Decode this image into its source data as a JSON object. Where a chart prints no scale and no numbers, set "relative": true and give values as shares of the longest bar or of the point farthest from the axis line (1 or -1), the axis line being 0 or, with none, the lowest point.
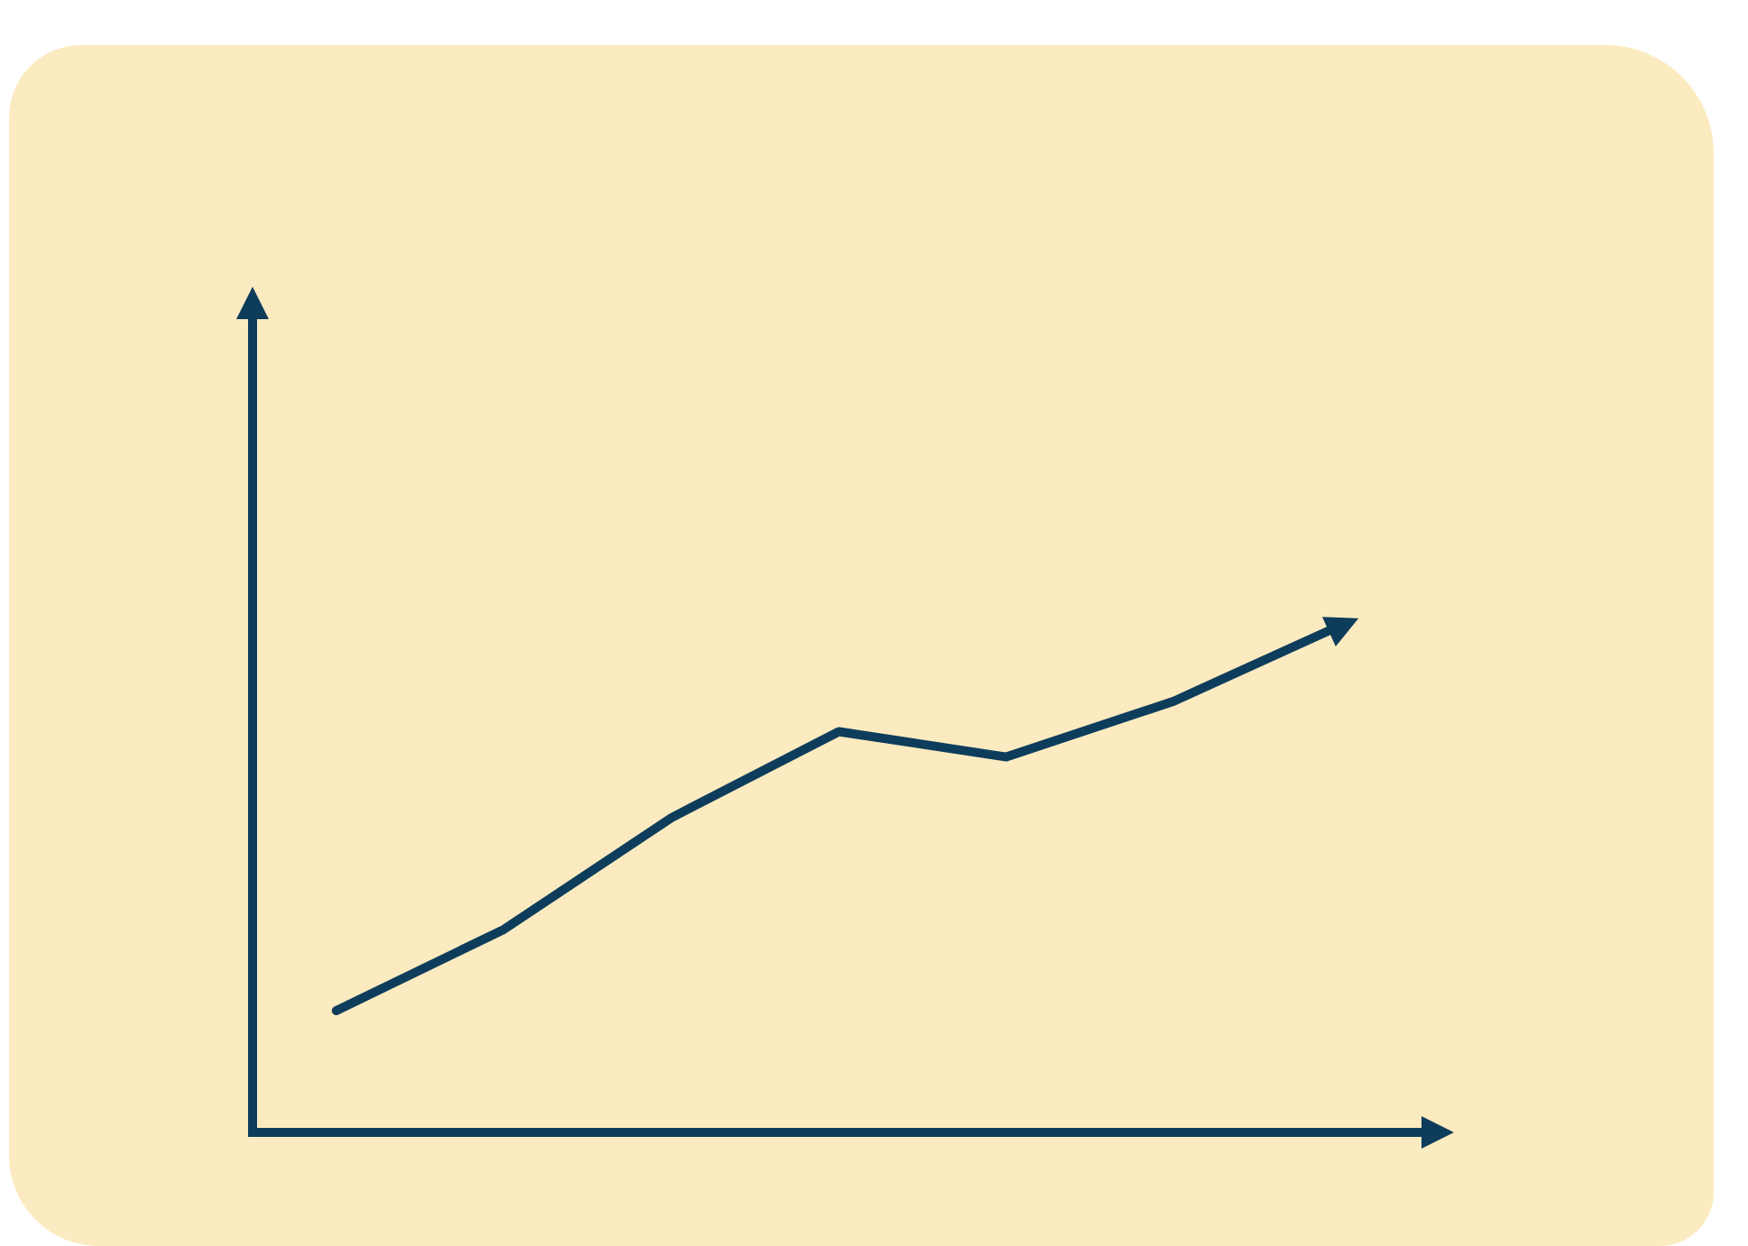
{
  "chart_data": {
    "type": "line",
    "relative": true,
    "categories": [
      null,
      null,
      null,
      null,
      null,
      null,
      null
    ],
    "series": [
      {
        "color": "#0e3d5c",
        "values": [
          0.24,
          0.4,
          0.62,
          0.79,
          0.74,
          0.85,
          1
        ]
      }
    ],
    "tick_labels": false,
    "grid": false,
    "legend": false,
    "marker": "none",
    "line_style": "solid"
  }
}
